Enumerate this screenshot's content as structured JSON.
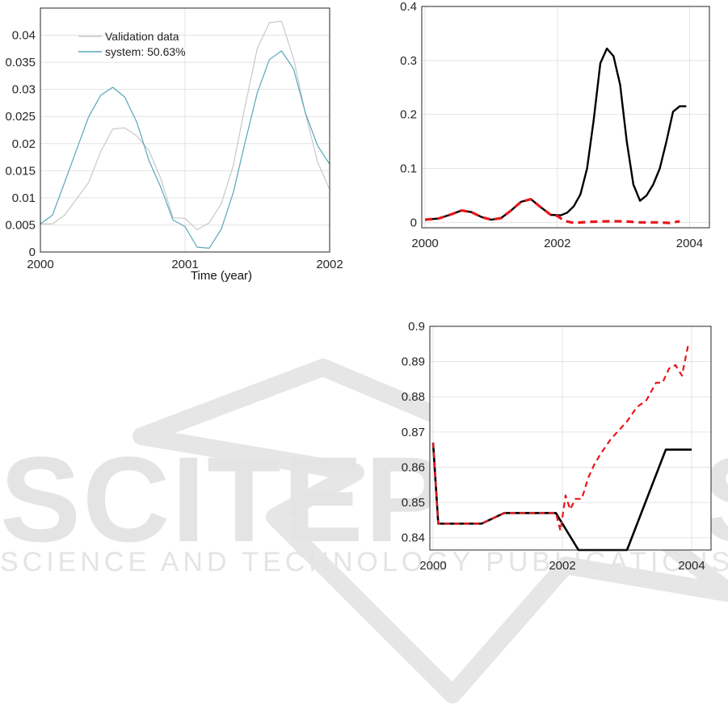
{
  "watermark": {
    "name": "SCITEPRESS",
    "tagline": "SCIENCE AND TECHNOLOGY PUBLICATIONS"
  },
  "chart_data": [
    {
      "id": "validation",
      "type": "line",
      "xlabel": "Time (year)",
      "ylabel": "",
      "xlim": [
        2000,
        2002
      ],
      "ylim": [
        0,
        0.045
      ],
      "xticks": [
        "2000",
        "2001",
        "2002"
      ],
      "yticks": [
        "0",
        "0.005",
        "0.01",
        "0.015",
        "0.02",
        "0.025",
        "0.03",
        "0.035",
        "0.04"
      ],
      "grid": true,
      "legend": "top-left",
      "series": [
        {
          "name": "Validation data",
          "color": "#c8c8c8",
          "dash": "solid",
          "x": [
            2000.0,
            2000.083,
            2000.167,
            2000.25,
            2000.333,
            2000.417,
            2000.5,
            2000.583,
            2000.667,
            2000.75,
            2000.833,
            2000.917,
            2001.0,
            2001.083,
            2001.167,
            2001.25,
            2001.333,
            2001.417,
            2001.5,
            2001.583,
            2001.667,
            2001.75,
            2001.833,
            2001.917,
            2002.0
          ],
          "y": [
            0.0052,
            0.0052,
            0.0068,
            0.0098,
            0.0128,
            0.0185,
            0.0227,
            0.0229,
            0.0214,
            0.0187,
            0.0135,
            0.0063,
            0.0062,
            0.0041,
            0.0054,
            0.0089,
            0.0159,
            0.0271,
            0.0376,
            0.0423,
            0.0426,
            0.0357,
            0.0255,
            0.0166,
            0.0115
          ]
        },
        {
          "name": "system: 50.63%",
          "color": "#5aa6b8",
          "dash": "solid",
          "x": [
            2000.0,
            2000.083,
            2000.167,
            2000.25,
            2000.333,
            2000.417,
            2000.5,
            2000.583,
            2000.667,
            2000.75,
            2000.833,
            2000.917,
            2001.0,
            2001.083,
            2001.167,
            2001.25,
            2001.333,
            2001.417,
            2001.5,
            2001.583,
            2001.667,
            2001.75,
            2001.833,
            2001.917,
            2002.0
          ],
          "y": [
            0.0052,
            0.0068,
            0.0128,
            0.0189,
            0.0249,
            0.0289,
            0.0304,
            0.0286,
            0.0239,
            0.0169,
            0.0119,
            0.0059,
            0.0047,
            0.0009,
            0.0007,
            0.0042,
            0.0109,
            0.0204,
            0.0294,
            0.0355,
            0.0371,
            0.0338,
            0.0256,
            0.0196,
            0.0162
          ]
        }
      ]
    },
    {
      "id": "forecast-1",
      "type": "line",
      "xlim": [
        1999.95,
        2004.3
      ],
      "ylim": [
        -0.01,
        0.4
      ],
      "xticks": [
        "2000",
        "2002",
        "2004"
      ],
      "yticks": [
        "0",
        "0.1",
        "0.2",
        "0.3",
        "0.4"
      ],
      "grid": true,
      "series": [
        {
          "color": "#000000",
          "dash": "solid",
          "x": [
            2000.0,
            2000.2,
            2000.4,
            2000.55,
            2000.7,
            2000.85,
            2001.0,
            2001.15,
            2001.3,
            2001.45,
            2001.6,
            2001.75,
            2001.9,
            2002.05,
            2002.15,
            2002.25,
            2002.35,
            2002.45,
            2002.55,
            2002.65,
            2002.75,
            2002.85,
            2002.95,
            2003.05,
            2003.15,
            2003.25,
            2003.35,
            2003.45,
            2003.55,
            2003.65,
            2003.75,
            2003.85,
            2003.95
          ],
          "y": [
            0.005,
            0.007,
            0.015,
            0.022,
            0.019,
            0.01,
            0.005,
            0.008,
            0.022,
            0.038,
            0.043,
            0.028,
            0.014,
            0.013,
            0.018,
            0.03,
            0.052,
            0.1,
            0.19,
            0.295,
            0.322,
            0.308,
            0.255,
            0.15,
            0.07,
            0.04,
            0.05,
            0.07,
            0.1,
            0.15,
            0.205,
            0.215,
            0.215
          ]
        },
        {
          "color": "#e8161c",
          "dash": "dashed",
          "x": [
            2000.0,
            2000.2,
            2000.4,
            2000.55,
            2000.7,
            2000.85,
            2001.0,
            2001.15,
            2001.3,
            2001.45,
            2001.6,
            2001.75,
            2001.9,
            2002.0,
            2002.1,
            2002.25,
            2002.5,
            2002.75,
            2003.0,
            2003.25,
            2003.5,
            2003.7,
            2003.85
          ],
          "y": [
            0.005,
            0.007,
            0.015,
            0.022,
            0.019,
            0.01,
            0.005,
            0.008,
            0.022,
            0.038,
            0.043,
            0.028,
            0.014,
            0.012,
            0.003,
            -0.001,
            0.001,
            0.002,
            0.002,
            0.0,
            0.0,
            -0.001,
            0.002
          ]
        }
      ]
    },
    {
      "id": "forecast-2",
      "type": "line",
      "xlim": [
        1999.95,
        2004.3
      ],
      "ylim": [
        0.8365,
        0.9
      ],
      "xticks": [
        "2000",
        "2002",
        "2004"
      ],
      "yticks": [
        "0.84",
        "0.85",
        "0.86",
        "0.87",
        "0.88",
        "0.89",
        "0.9"
      ],
      "grid": true,
      "series": [
        {
          "color": "#000000",
          "dash": "solid",
          "x": [
            2000.0,
            2000.08,
            2000.75,
            2001.1,
            2001.9,
            2002.25,
            2003.0,
            2003.6,
            2004.0
          ],
          "y": [
            0.867,
            0.844,
            0.844,
            0.847,
            0.847,
            0.8365,
            0.8365,
            0.865,
            0.865
          ],
          "note_width": "thick"
        },
        {
          "color": "#e8161c",
          "dash": "dashed",
          "x": [
            2000.0,
            2000.08,
            2000.75,
            2001.1,
            2001.9,
            2001.97,
            2002.05,
            2002.12,
            2002.2,
            2002.3,
            2002.4,
            2002.5,
            2002.6,
            2002.75,
            2002.9,
            2003.0,
            2003.15,
            2003.3,
            2003.45,
            2003.55,
            2003.65,
            2003.75,
            2003.85,
            2003.95
          ],
          "y": [
            0.867,
            0.844,
            0.844,
            0.847,
            0.847,
            0.842,
            0.852,
            0.848,
            0.851,
            0.851,
            0.857,
            0.861,
            0.864,
            0.868,
            0.871,
            0.873,
            0.877,
            0.879,
            0.884,
            0.884,
            0.888,
            0.889,
            0.886,
            0.895
          ]
        }
      ]
    }
  ]
}
